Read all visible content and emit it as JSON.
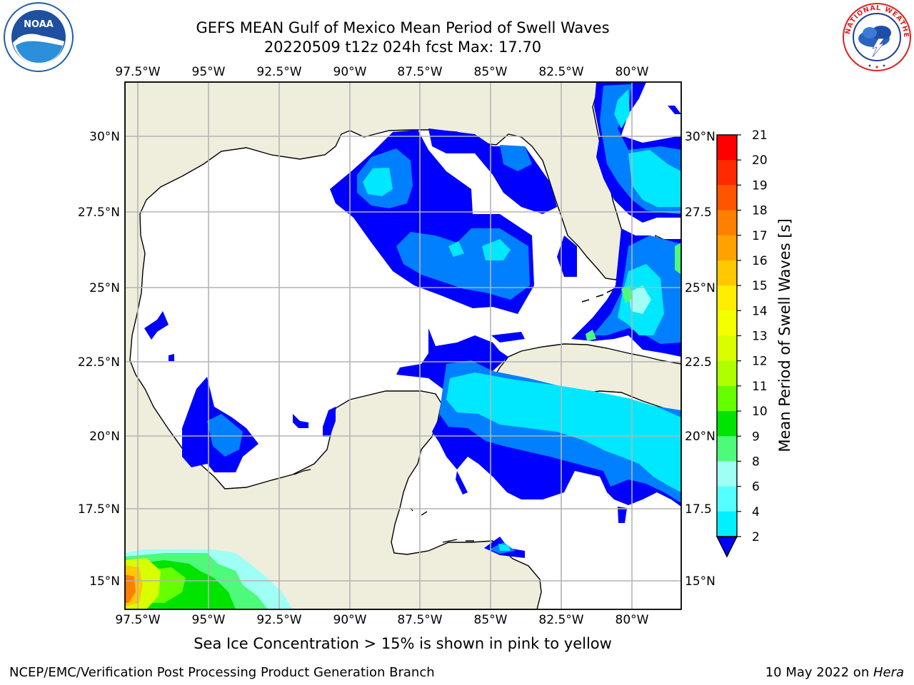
{
  "header": {
    "title_line1": "GEFS MEAN Gulf of Mexico Mean Period of Swell Waves",
    "title_line2": "20220509 t12z 024h fcst   Max: 17.70"
  },
  "logos": {
    "left": {
      "name": "NOAA",
      "ring_text": "NATIONAL OCEANIC AND ATMOSPHERIC ADMINISTRATION · U.S. DEPARTMENT OF COMMERCE"
    },
    "right": {
      "name": "NATIONAL WEATHER SERVICE"
    }
  },
  "map": {
    "lon_labels": [
      "97.5°W",
      "95°W",
      "92.5°W",
      "90°W",
      "87.5°W",
      "85°W",
      "82.5°W",
      "80°W"
    ],
    "lat_labels_left": [
      "30°N",
      "27.5°N",
      "25°N",
      "22.5°N",
      "20°N",
      "17.5°N",
      "15°N"
    ],
    "lat_labels_right": [
      "30°N",
      "27.5",
      "25°N",
      "22.5",
      "20°N",
      "17.5",
      "15°N"
    ],
    "colors": {
      "land": "#efeedd",
      "ocean": "#ffffff",
      "grid": "#b4b4b4"
    }
  },
  "colorbar": {
    "label": "Mean Period of Swell Waves [s]",
    "ticks": [
      "21",
      "20",
      "19",
      "18",
      "17",
      "16",
      "15",
      "14",
      "13",
      "12",
      "11",
      "10",
      "9",
      "8",
      "6",
      "4",
      "2"
    ],
    "colors": [
      "#ff0000",
      "#ff2a00",
      "#ff5500",
      "#ff7f00",
      "#ffa200",
      "#ffc800",
      "#ffee00",
      "#f4ff00",
      "#d8ff00",
      "#b0ff00",
      "#66ff00",
      "#00e400",
      "#4dfa7a",
      "#a0fff5",
      "#55ffff",
      "#00f0ff",
      "#0080ff",
      "#0000ff"
    ]
  },
  "footer": {
    "ice_note": "Sea Ice Concentration > 15% is shown in pink to yellow",
    "left": "NCEP/EMC/Verification Post Processing Product Generation Branch",
    "right_date": "10 May 2022 on ",
    "right_host": "Hera"
  }
}
